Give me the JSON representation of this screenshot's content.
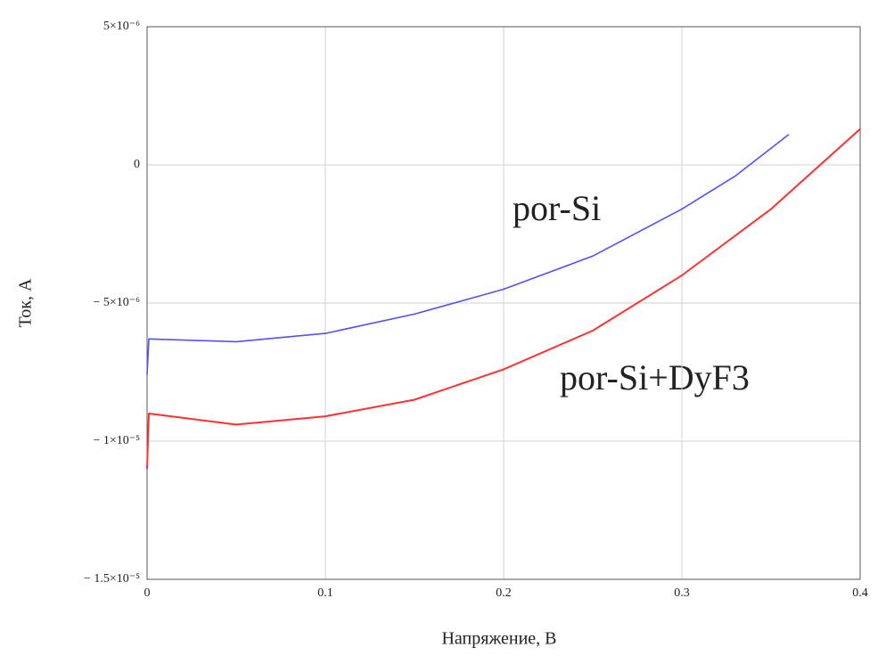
{
  "chart_data": {
    "type": "line",
    "xlabel": "Напряжение, В",
    "ylabel": "Ток, А",
    "series": [
      {
        "name": "por-Si",
        "color": "#5050ff",
        "x": [
          0,
          0.001,
          0.05,
          0.1,
          0.15,
          0.2,
          0.25,
          0.3,
          0.33,
          0.36
        ],
        "values": [
          -7.6e-06,
          -6.3e-06,
          -6.4e-06,
          -6.1e-06,
          -5.4e-06,
          -4.5e-06,
          -3.3e-06,
          -1.6e-06,
          -4e-07,
          1.1e-06
        ]
      },
      {
        "name": "por-Si+DyF3",
        "color": "#ff3030",
        "x": [
          0,
          0.001,
          0.05,
          0.1,
          0.15,
          0.2,
          0.25,
          0.3,
          0.35,
          0.4
        ],
        "values": [
          -1.1e-05,
          -9e-06,
          -9.4e-06,
          -9.1e-06,
          -8.5e-06,
          -7.4e-06,
          -6e-06,
          -4e-06,
          -1.6e-06,
          1.3e-06
        ]
      }
    ],
    "xlim": [
      0,
      0.4
    ],
    "xticks": [
      0,
      0.1,
      0.2,
      0.3,
      0.4
    ],
    "ylim": [
      -1.5e-05,
      5e-06
    ],
    "yticks": [
      {
        "value": -1.5e-05,
        "label": "− 1.5×10⁻⁵"
      },
      {
        "value": -1e-05,
        "label": "− 1×10⁻⁵"
      },
      {
        "value": -5e-06,
        "label": "− 5×10⁻⁶"
      },
      0,
      {
        "value": 5e-06,
        "label": "5×10⁻⁶"
      }
    ],
    "grid": true
  }
}
